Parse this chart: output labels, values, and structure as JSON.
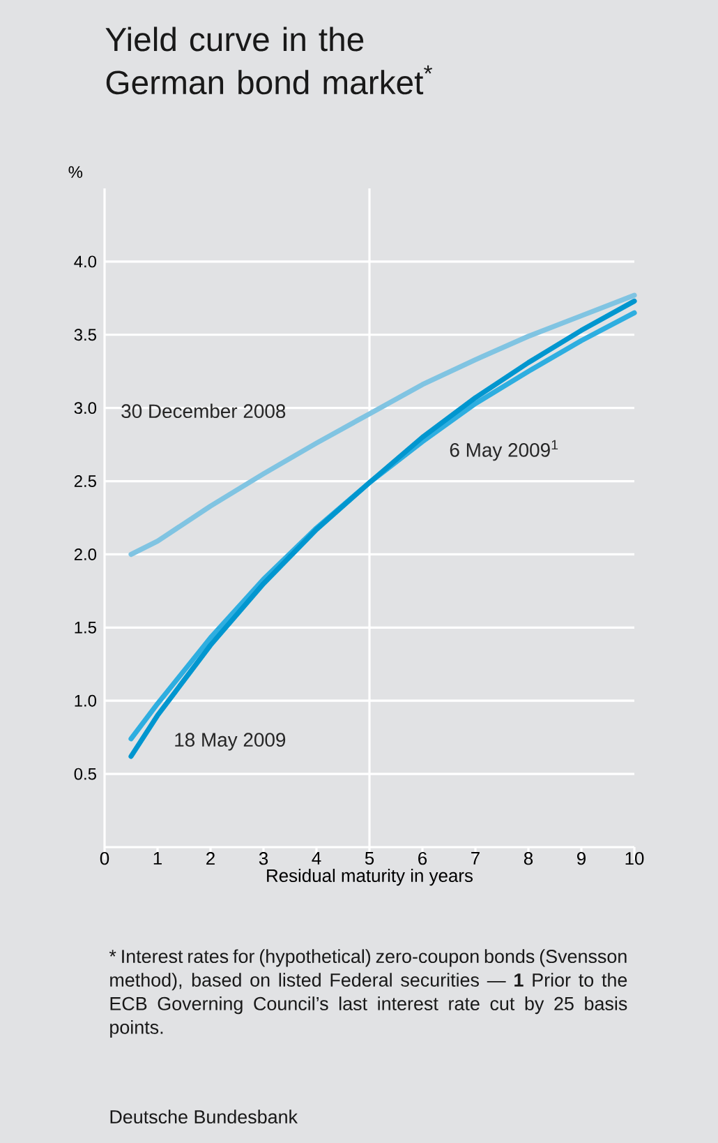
{
  "chart_data": {
    "type": "line",
    "title": "Yield curve in the German bond market$^{*}$",
    "ylabel": "%",
    "xlabel": "Residual maturity in years",
    "x": [
      0.5,
      1,
      2,
      3,
      4,
      5,
      6,
      7,
      8,
      9,
      10
    ],
    "series": [
      {
        "name": "30 December 2008",
        "color": "#80c4e2",
        "values": [
          2.0,
          2.09,
          2.33,
          2.55,
          2.76,
          2.96,
          3.16,
          3.33,
          3.49,
          3.63,
          3.77
        ]
      },
      {
        "name": "6 May 2009$^{1}$",
        "color": "#2eaee0",
        "values": [
          0.74,
          0.98,
          1.43,
          1.83,
          2.18,
          2.49,
          2.77,
          3.03,
          3.25,
          3.46,
          3.65
        ]
      },
      {
        "name": "18 May 2009",
        "color": "#0096cf",
        "values": [
          0.62,
          0.9,
          1.38,
          1.8,
          2.17,
          2.49,
          2.8,
          3.07,
          3.31,
          3.53,
          3.73
        ]
      }
    ],
    "xlim": [
      0,
      10
    ],
    "xticks": [
      0,
      1,
      2,
      3,
      4,
      5,
      6,
      7,
      8,
      9,
      10
    ],
    "ylim": [
      0,
      4.5
    ],
    "yticks": [
      0.5,
      {
        "value": 1,
        "label": "1.0"
      },
      1.5,
      {
        "value": 2,
        "label": "2.0"
      },
      2.5,
      {
        "value": 3,
        "label": "3.0"
      },
      3.5,
      {
        "value": 4,
        "label": "4.0"
      }
    ],
    "grid": "y",
    "legend": false,
    "marker": "none",
    "line_style": "solid",
    "ref_lines": [
      {
        "axis": "x",
        "value": 5,
        "color": "#ffffff"
      }
    ],
    "annotations": [
      "* Interest rates for (hypothetical) zero-coupon bonds (Svensson method), based on listed Federal securities — **1** Prior to the ECB Governing Council’s last interest rate cut by 25 basis points.",
      "Deutsche Bundesbank"
    ]
  }
}
